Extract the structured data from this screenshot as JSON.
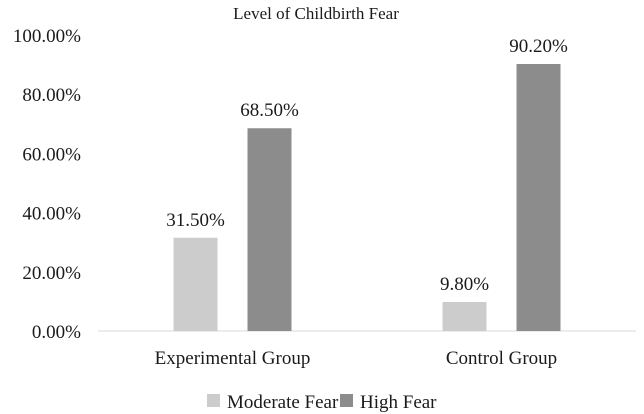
{
  "chart_data": {
    "type": "bar",
    "title": "Level of Childbirth Fear",
    "xlabel": "",
    "ylabel": "",
    "categories": [
      "Experimental Group",
      "Control Group"
    ],
    "series": [
      {
        "name": "Moderate Fear",
        "values": [
          31.5,
          9.8
        ],
        "labels": [
          "31.50%",
          "9.80%"
        ],
        "color": "#cccccc"
      },
      {
        "name": "High Fear",
        "values": [
          68.5,
          90.2
        ],
        "labels": [
          "68.50%",
          "90.20%"
        ],
        "color": "#8c8c8c"
      }
    ],
    "ylim": [
      0,
      100
    ],
    "yticks": [
      0,
      20,
      40,
      60,
      80,
      100
    ],
    "ytick_labels": [
      "0.00%",
      "20.00%",
      "40.00%",
      "60.00%",
      "80.00%",
      "100.00%"
    ],
    "grid": false,
    "legend_position": "bottom"
  }
}
